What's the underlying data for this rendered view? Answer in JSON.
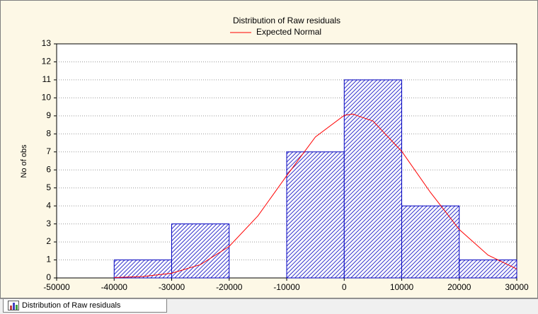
{
  "chart_data": {
    "type": "histogram",
    "title": "Distribution of Raw residuals",
    "ylabel": "No of obs",
    "bins": [
      -40000,
      -30000,
      -20000,
      -10000,
      0,
      10000,
      20000,
      30000
    ],
    "values": [
      1,
      3,
      0,
      7,
      11,
      4,
      1
    ],
    "color": "#0000c0",
    "curve": {
      "name": "Expected Normal",
      "color": "#ff0000",
      "x": [
        -40000,
        -35000,
        -30000,
        -25000,
        -20000,
        -15000,
        -10000,
        -5000,
        0,
        1500,
        5000,
        10000,
        15000,
        20000,
        25000,
        30000
      ],
      "y": [
        0.02,
        0.08,
        0.26,
        0.74,
        1.75,
        3.45,
        5.68,
        7.83,
        9.03,
        9.1,
        8.71,
        7.03,
        4.75,
        2.69,
        1.27,
        0.5
      ]
    },
    "xlim": [
      -50000,
      30000
    ],
    "xticks": [
      -50000,
      -40000,
      -30000,
      -20000,
      -10000,
      0,
      10000,
      20000,
      30000
    ],
    "ylim": [
      0,
      13
    ],
    "yticks": [
      0,
      1,
      2,
      3,
      4,
      5,
      6,
      7,
      8,
      9,
      10,
      11,
      12,
      13
    ],
    "grid": true
  },
  "tab": {
    "label": "Distribution of Raw residuals"
  }
}
